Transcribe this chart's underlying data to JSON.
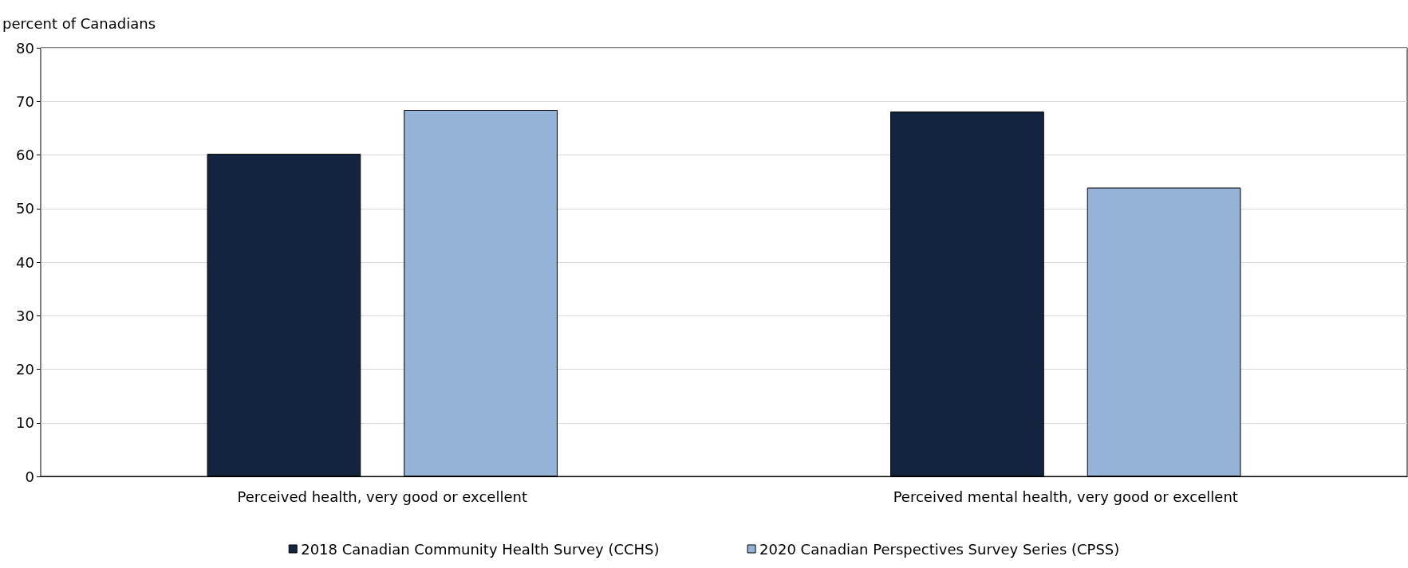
{
  "chart_data": {
    "type": "bar",
    "ylabel": "percent of Canadians",
    "categories": [
      "Perceived health, very good or excellent",
      "Perceived mental health, very good or excellent"
    ],
    "series": [
      {
        "name": "2018 Canadian Community Health Survey (CCHS)",
        "color": "#12243f",
        "values": [
          60.2,
          68.1
        ]
      },
      {
        "name": "2020 Canadian Perspectives Survey Series (CPSS)",
        "color": "#95b3d7",
        "values": [
          68.4,
          53.9
        ]
      }
    ],
    "ylim": [
      0,
      80
    ],
    "yticks": [
      0,
      10,
      20,
      30,
      40,
      50,
      60,
      70,
      80
    ],
    "grid": "y",
    "legend": "bottom"
  }
}
